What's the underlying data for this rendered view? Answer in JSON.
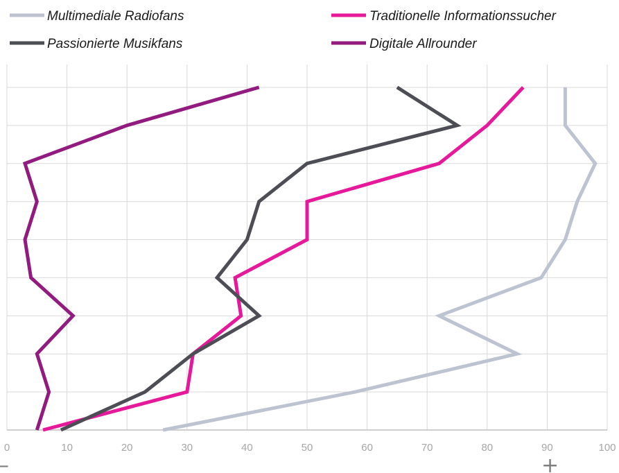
{
  "chart_data": {
    "type": "line",
    "title": "",
    "xlabel": "",
    "ylabel": "",
    "xlim": [
      0,
      100
    ],
    "xticks": [
      "0",
      "10",
      "20",
      "30",
      "40",
      "50",
      "60",
      "70",
      "80",
      "90",
      "100"
    ],
    "axis_min_label": "–",
    "axis_max_label": "+",
    "grid": true,
    "legend_position": "top",
    "series": [
      {
        "name": "Multimediale Radiofans",
        "color": "#bdc3d1",
        "values": [
          26,
          58,
          85,
          72,
          89,
          93,
          95,
          98,
          93,
          93
        ]
      },
      {
        "name": "Traditionelle Informationssucher",
        "color": "#e6199a",
        "values": [
          6,
          30,
          31,
          39,
          38,
          50,
          50,
          72,
          80,
          86
        ]
      },
      {
        "name": "Passionierte Musikfans",
        "color": "#4d4d55",
        "values": [
          9,
          23,
          31,
          42,
          35,
          40,
          42,
          50,
          75,
          65
        ]
      },
      {
        "name": "Digitale Allrounder",
        "color": "#921b7f",
        "values": [
          5,
          7,
          5,
          11,
          4,
          3,
          5,
          3,
          20,
          42
        ]
      }
    ]
  }
}
